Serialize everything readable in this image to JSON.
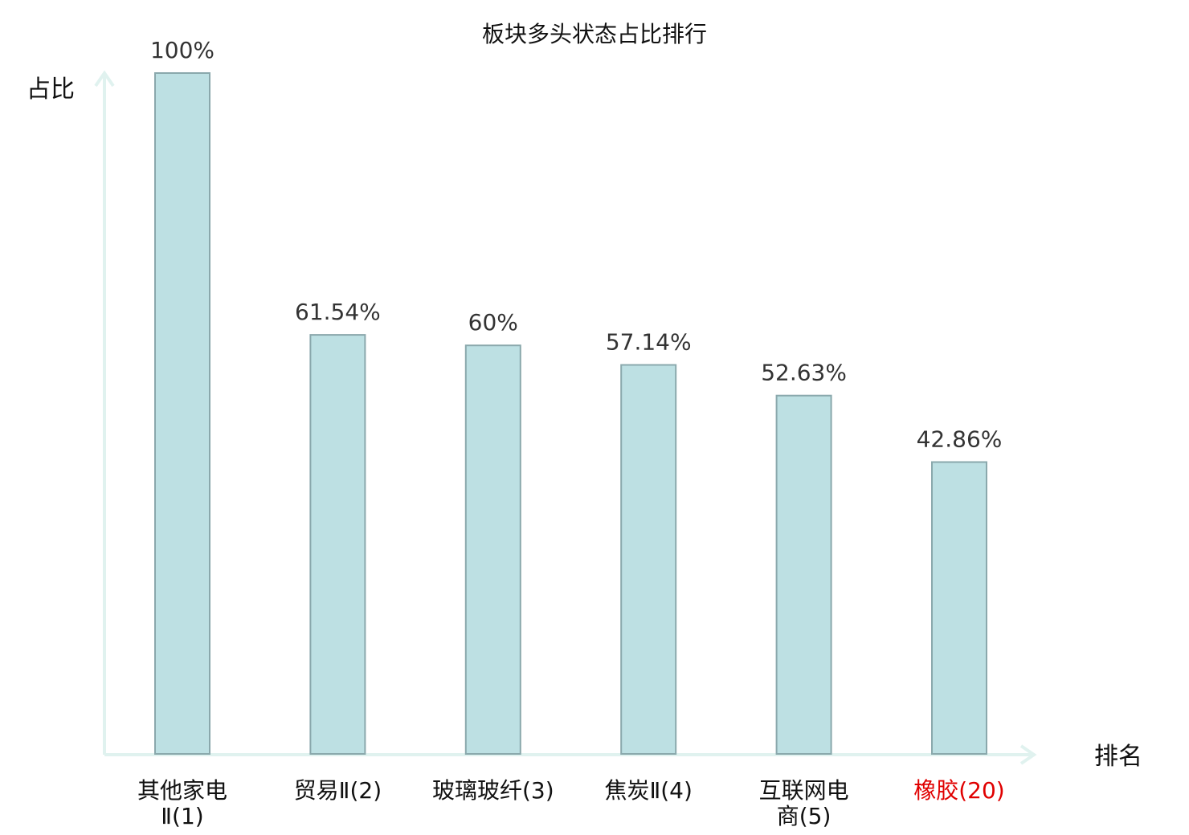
{
  "chart_data": {
    "type": "bar",
    "title": "板块多头状态占比排行",
    "ylabel": "占比",
    "xlabel": "排名",
    "ylim": [
      0,
      100
    ],
    "grid": false,
    "categories": [
      [
        "其他家电",
        "Ⅱ(1)"
      ],
      [
        "贸易Ⅱ(2)"
      ],
      [
        "玻璃玻纤(3)"
      ],
      [
        "焦炭Ⅱ(4)"
      ],
      [
        "互联网电",
        "商(5)"
      ],
      [
        "橡胶(20)"
      ]
    ],
    "values": [
      100,
      61.54,
      60,
      57.14,
      52.63,
      42.86
    ],
    "value_labels": [
      "100%",
      "61.54%",
      "60%",
      "57.14%",
      "52.63%",
      "42.86%"
    ],
    "highlight_index": 5
  },
  "colors": {
    "bar_fill": "#bde0e3",
    "bar_stroke": "#8aa8ac",
    "axis": "#e0f2ef",
    "text": "#111111",
    "value_text": "#333333",
    "highlight_text": "#e00000"
  }
}
